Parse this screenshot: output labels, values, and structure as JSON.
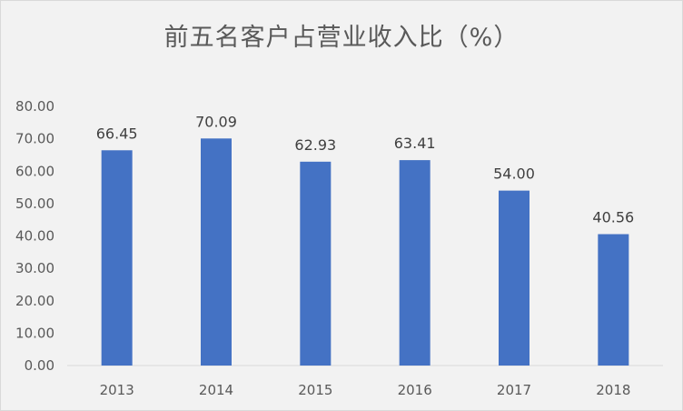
{
  "chart_data": {
    "type": "bar",
    "title": "前五名客户占营业收入比（%）",
    "categories": [
      "2013",
      "2014",
      "2015",
      "2016",
      "2017",
      "2018"
    ],
    "values": [
      66.45,
      70.09,
      62.93,
      63.41,
      54.0,
      40.56
    ],
    "data_labels": [
      "66.45",
      "70.09",
      "62.93",
      "63.41",
      "54.00",
      "40.56"
    ],
    "ylim": [
      0,
      80
    ],
    "yticks": [
      "0.00",
      "10.00",
      "20.00",
      "30.00",
      "40.00",
      "50.00",
      "60.00",
      "70.00",
      "80.00"
    ],
    "grid": false,
    "legend": "none",
    "bar_color": "#4472c4"
  }
}
